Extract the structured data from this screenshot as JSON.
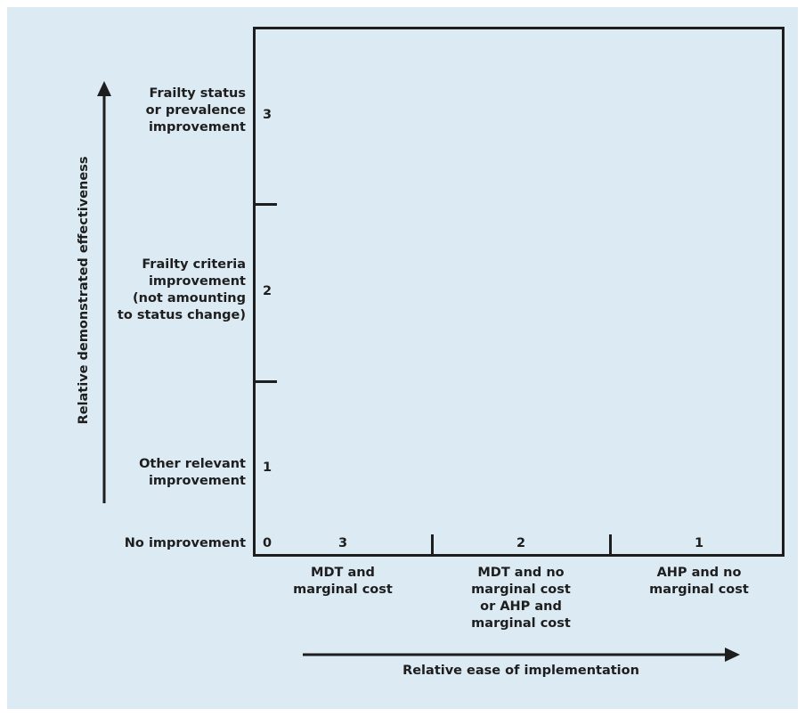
{
  "y_axis": {
    "title": "Relative demonstrated effectiveness",
    "levels": [
      {
        "score": "3",
        "label_lines": [
          "Frailty status",
          "or prevalence",
          "improvement"
        ]
      },
      {
        "score": "2",
        "label_lines": [
          "Frailty criteria",
          "improvement",
          "(not amounting",
          "to status change)"
        ]
      },
      {
        "score": "1",
        "label_lines": [
          "Other relevant",
          "improvement"
        ]
      },
      {
        "score": "0",
        "label_lines": [
          "No improvement"
        ]
      }
    ]
  },
  "x_axis": {
    "title": "Relative ease of implementation",
    "levels": [
      {
        "score": "3",
        "label_lines": [
          "MDT and",
          "marginal cost"
        ]
      },
      {
        "score": "2",
        "label_lines": [
          "MDT and no",
          "marginal cost",
          "or AHP and",
          "marginal cost"
        ]
      },
      {
        "score": "1",
        "label_lines": [
          "AHP and no",
          "marginal cost"
        ]
      }
    ]
  },
  "colors": {
    "background": "#dcebf3",
    "ink": "#1e1e1e"
  }
}
